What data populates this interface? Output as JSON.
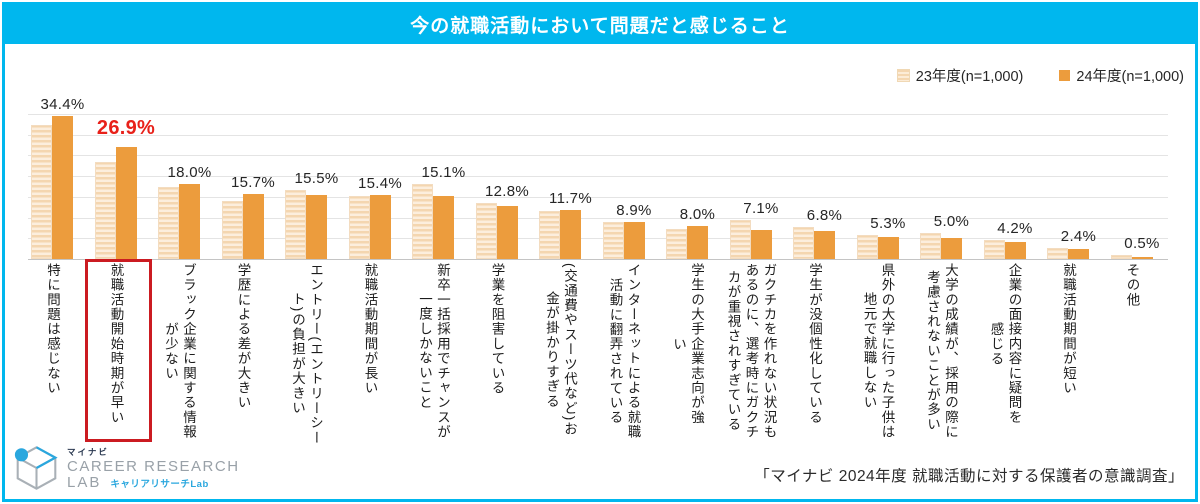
{
  "header": {
    "title": "今の就職活動において問題だと感じること"
  },
  "legend": {
    "items": [
      {
        "label": "23年度(n=1,000)",
        "swatch": "striped-light-orange"
      },
      {
        "label": "24年度(n=1,000)",
        "swatch": "solid-orange"
      }
    ]
  },
  "chart_data": {
    "type": "bar",
    "title": "今の就職活動において問題だと感じること",
    "ylim": [
      0,
      40
    ],
    "grid_interval": 5,
    "grid": "on",
    "legend_position": "top-right",
    "value_labels_from_series": "24年度(n=1,000)",
    "categories": [
      {
        "label": "特に問題は感じない",
        "lines": [
          "特に問題は感じない"
        ],
        "highlight": false
      },
      {
        "label": "就職活動開始時期が早い",
        "lines": [
          "就職活動開始時期が早い"
        ],
        "highlight": true
      },
      {
        "label": "ブラック企業に関する情報が少ない",
        "lines": [
          "ブラック企業に関する情報",
          "が少ない"
        ],
        "highlight": false
      },
      {
        "label": "学歴による差が大きい",
        "lines": [
          "学歴による差が大きい"
        ],
        "highlight": false
      },
      {
        "label": "エントリー(エントリーシート)の負担が大きい",
        "lines": [
          "エントリー(エントリーシー",
          "ト)の負担が大きい"
        ],
        "highlight": false
      },
      {
        "label": "就職活動期間が長い",
        "lines": [
          "就職活動期間が長い"
        ],
        "highlight": false
      },
      {
        "label": "新卒一括採用でチャンスが一度しかないこと",
        "lines": [
          "新卒一括採用でチャンスが",
          "一度しかないこと"
        ],
        "highlight": false
      },
      {
        "label": "学業を阻害している",
        "lines": [
          "学業を阻害している"
        ],
        "highlight": false
      },
      {
        "label": "(交通費やスーツ代など)お金が掛かりすぎる",
        "lines": [
          "(交通費やスーツ代など)お",
          "金が掛かりすぎる"
        ],
        "highlight": false
      },
      {
        "label": "インターネットによる就職活動に翻弄されている",
        "lines": [
          "インターネットによる就職",
          "活動に翻弄されている"
        ],
        "highlight": false
      },
      {
        "label": "学生の大手企業志向が強い",
        "lines": [
          "学生の大手企業志向が強",
          "い"
        ],
        "highlight": false
      },
      {
        "label": "ガクチカを作れない状況もあるのに、選考時にガクチカが重視されすぎている",
        "lines": [
          "ガクチカを作れない状況も",
          "あるのに、選考時にガクチ",
          "カが重視されすぎている"
        ],
        "highlight": false
      },
      {
        "label": "学生が没個性化している",
        "lines": [
          "学生が没個性化している"
        ],
        "highlight": false
      },
      {
        "label": "県外の大学に行った子供は地元で就職しない",
        "lines": [
          "県外の大学に行った子供は",
          "地元で就職しない"
        ],
        "highlight": false
      },
      {
        "label": "大学の成績が、採用の際に考慮されないことが多い",
        "lines": [
          "大学の成績が、採用の際に",
          "考慮されないことが多い"
        ],
        "highlight": false
      },
      {
        "label": "企業の面接内容に疑問を感じる",
        "lines": [
          "企業の面接内容に疑問を",
          "感じる"
        ],
        "highlight": false
      },
      {
        "label": "就職活動期間が短い",
        "lines": [
          "就職活動期間が短い"
        ],
        "highlight": false
      },
      {
        "label": "その他",
        "lines": [
          "その他"
        ],
        "highlight": false
      }
    ],
    "series": [
      {
        "name": "23年度(n=1,000)",
        "style": "striped-light-orange",
        "values": [
          32.4,
          23.4,
          17.4,
          14.0,
          16.6,
          15.1,
          18.0,
          13.5,
          11.5,
          8.8,
          7.2,
          9.3,
          7.7,
          5.9,
          6.2,
          4.5,
          2.6,
          1.0
        ]
      },
      {
        "name": "24年度(n=1,000)",
        "style": "solid-orange",
        "values": [
          34.4,
          26.9,
          18.0,
          15.7,
          15.5,
          15.4,
          15.1,
          12.8,
          11.7,
          8.9,
          8.0,
          7.1,
          6.8,
          5.3,
          5.0,
          4.2,
          2.4,
          0.5
        ]
      }
    ],
    "value_labels": [
      "34.4%",
      "26.9%",
      "18.0%",
      "15.7%",
      "15.5%",
      "15.4%",
      "15.1%",
      "12.8%",
      "11.7%",
      "8.9%",
      "8.0%",
      "7.1%",
      "6.8%",
      "5.3%",
      "5.0%",
      "4.2%",
      "2.4%",
      "0.5%"
    ]
  },
  "footer": {
    "source": "「マイナビ 2024年度 就職活動に対する保護者の意識調査」",
    "logo": {
      "brand_small": "マイナビ",
      "line1": "CAREER RESEARCH",
      "line2": "LAB",
      "sub": "キャリアリサーチLab"
    }
  },
  "colors": {
    "accent_cyan": "#00b7ee",
    "bar_fy24": "#ec9c3d",
    "bar_fy23_stripe_a": "#f4d6b0",
    "bar_fy23_stripe_b": "#fceedd",
    "highlight_red": "#e8211a",
    "highlight_box_red": "#cb1b21",
    "gridline": "#e4e4e4"
  }
}
